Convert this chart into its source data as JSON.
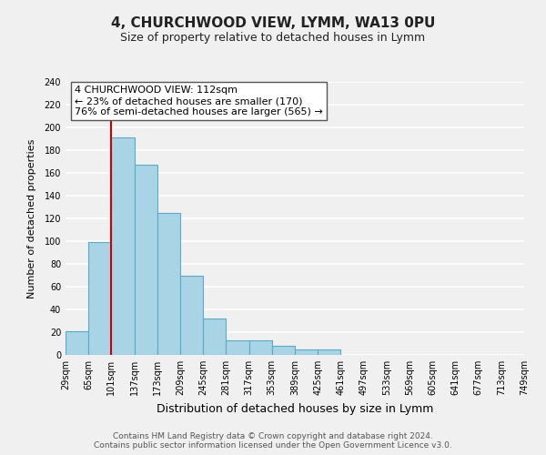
{
  "title": "4, CHURCHWOOD VIEW, LYMM, WA13 0PU",
  "subtitle": "Size of property relative to detached houses in Lymm",
  "xlabel": "Distribution of detached houses by size in Lymm",
  "ylabel": "Number of detached properties",
  "footer_line1": "Contains HM Land Registry data © Crown copyright and database right 2024.",
  "footer_line2": "Contains public sector information licensed under the Open Government Licence v3.0.",
  "bin_labels": [
    "29sqm",
    "65sqm",
    "101sqm",
    "137sqm",
    "173sqm",
    "209sqm",
    "245sqm",
    "281sqm",
    "317sqm",
    "353sqm",
    "389sqm",
    "425sqm",
    "461sqm",
    "497sqm",
    "533sqm",
    "569sqm",
    "605sqm",
    "641sqm",
    "677sqm",
    "713sqm",
    "749sqm"
  ],
  "bar_heights": [
    21,
    99,
    191,
    167,
    125,
    70,
    32,
    13,
    13,
    8,
    5,
    5,
    0,
    0,
    0,
    0,
    0,
    0,
    0,
    0
  ],
  "bar_color": "#a8d4e6",
  "bar_edge_color": "#5aaac8",
  "vline_color": "#cc0000",
  "annotation_title": "4 CHURCHWOOD VIEW: 112sqm",
  "annotation_line1": "← 23% of detached houses are smaller (170)",
  "annotation_line2": "76% of semi-detached houses are larger (565) →",
  "ylim": [
    0,
    240
  ],
  "yticks": [
    0,
    20,
    40,
    60,
    80,
    100,
    120,
    140,
    160,
    180,
    200,
    220,
    240
  ],
  "background_color": "#f0f0f0",
  "plot_bg_color": "#f0f0f0",
  "grid_color": "#ffffff",
  "annotation_box_facecolor": "#ffffff",
  "annotation_box_edgecolor": "#555555",
  "title_fontsize": 11,
  "subtitle_fontsize": 9,
  "xlabel_fontsize": 9,
  "ylabel_fontsize": 8,
  "tick_fontsize": 7,
  "footer_fontsize": 6.5,
  "annotation_fontsize": 8
}
